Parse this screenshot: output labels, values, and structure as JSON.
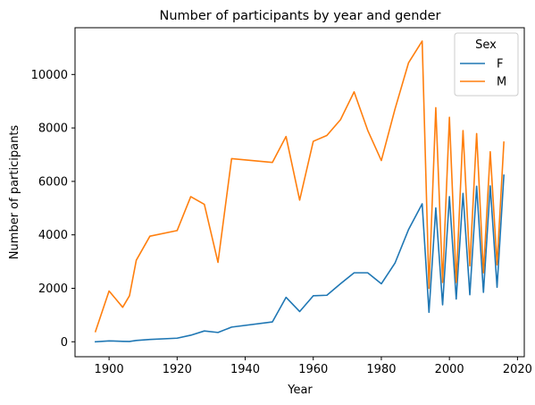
{
  "chart_data": {
    "type": "line",
    "title": "Number of participants by year and gender",
    "xlabel": "Year",
    "ylabel": "Number of participants",
    "xlim": [
      1890,
      2022
    ],
    "ylim": [
      -560,
      11750
    ],
    "xticks": [
      1900,
      1920,
      1940,
      1960,
      1980,
      2000,
      2020
    ],
    "yticks": [
      0,
      2000,
      4000,
      6000,
      8000,
      10000
    ],
    "grid": false,
    "legend": {
      "title": "Sex",
      "position": "top-right"
    },
    "series": [
      {
        "name": "F",
        "color": "#1f77b4",
        "x": [
          1896,
          1900,
          1904,
          1906,
          1908,
          1912,
          1920,
          1924,
          1928,
          1932,
          1936,
          1948,
          1952,
          1956,
          1960,
          1964,
          1968,
          1972,
          1976,
          1980,
          1984,
          1988,
          1992,
          1994,
          1996,
          1998,
          2000,
          2002,
          2004,
          2006,
          2008,
          2010,
          2012,
          2014,
          2016
        ],
        "values": [
          0,
          33,
          16,
          11,
          47,
          87,
          134,
          244,
          404,
          347,
          548,
          744,
          1661,
          1130,
          1720,
          1740,
          2170,
          2580,
          2580,
          2170,
          2940,
          4200,
          5160,
          1100,
          5010,
          1380,
          5430,
          1600,
          5550,
          1760,
          5820,
          1850,
          5830,
          2040,
          6230
        ]
      },
      {
        "name": "M",
        "color": "#ff7f0e",
        "x": [
          1896,
          1900,
          1904,
          1906,
          1908,
          1912,
          1920,
          1924,
          1928,
          1932,
          1936,
          1948,
          1952,
          1956,
          1960,
          1964,
          1968,
          1972,
          1976,
          1980,
          1984,
          1988,
          1992,
          1994,
          1996,
          1998,
          2000,
          2002,
          2004,
          2006,
          2008,
          2010,
          2012,
          2014,
          2016
        ],
        "values": [
          380,
          1900,
          1290,
          1720,
          3050,
          3950,
          4160,
          5430,
          5140,
          2970,
          6850,
          6710,
          7680,
          5300,
          7500,
          7720,
          8310,
          9350,
          7910,
          6780,
          8700,
          10440,
          11250,
          2000,
          8760,
          2220,
          8400,
          2220,
          7900,
          2840,
          7790,
          2580,
          7110,
          2880,
          7470
        ]
      }
    ]
  }
}
